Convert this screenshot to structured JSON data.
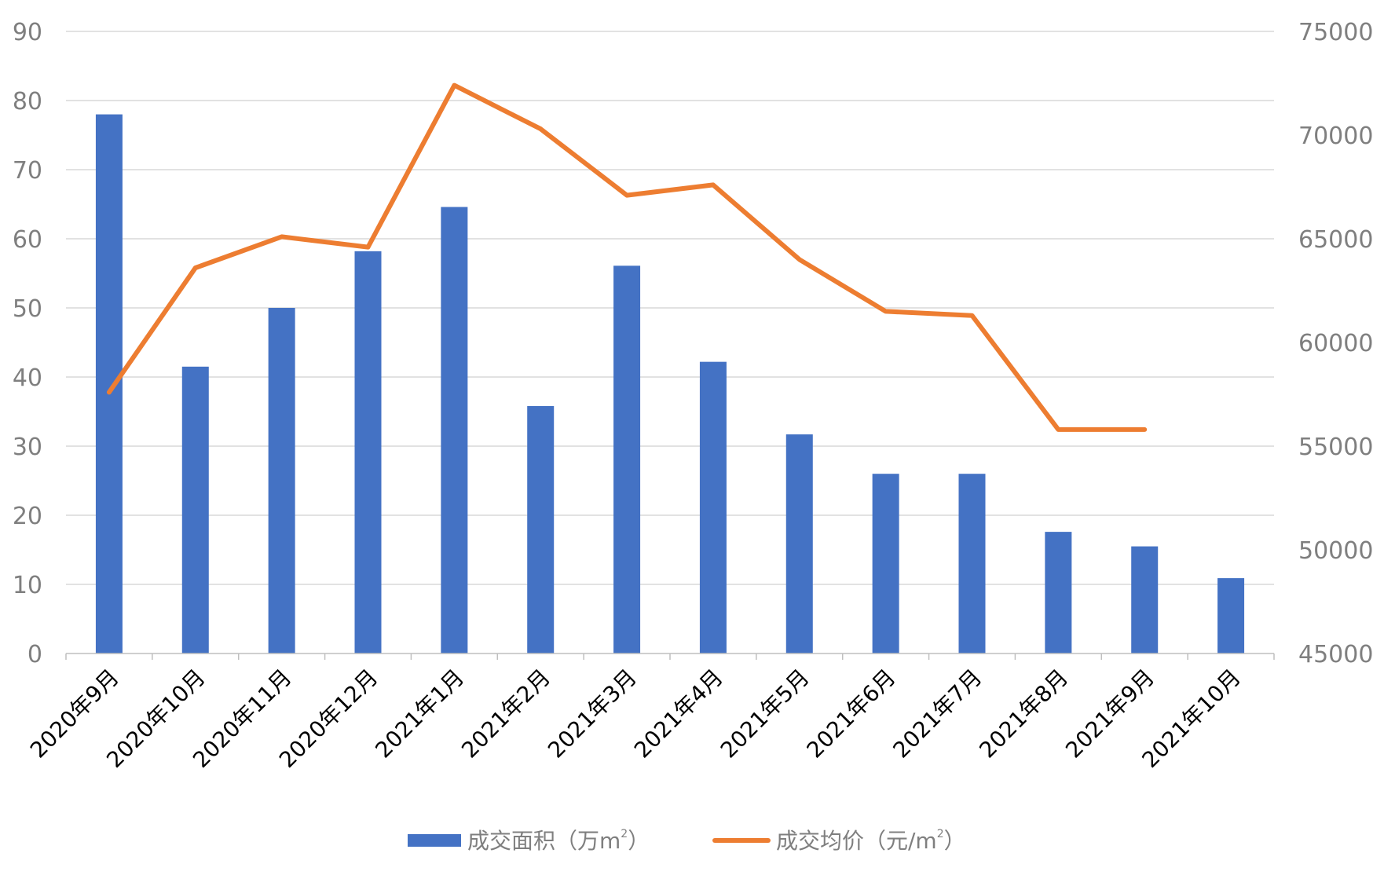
{
  "colors": {
    "bar": "#4472c4",
    "line": "#ed7d31",
    "grid": "#d9d9d9",
    "axis": "#bfbfbf",
    "tick_text": "#7f7f7f",
    "category_text": "#000000"
  },
  "chart_data": {
    "type": "bar",
    "categories": [
      "2020年9月",
      "2020年10月",
      "2020年11月",
      "2020年12月",
      "2021年1月",
      "2021年2月",
      "2021年3月",
      "2021年4月",
      "2021年5月",
      "2021年6月",
      "2021年7月",
      "2021年8月",
      "2021年9月",
      "2021年10月"
    ],
    "series": [
      {
        "name": "成交面积（万m²）",
        "type": "bar",
        "axis": "left",
        "values": [
          78,
          41.5,
          50,
          58.2,
          64.6,
          35.8,
          56.1,
          42.2,
          31.7,
          26,
          26,
          17.6,
          15.5,
          10.9
        ]
      },
      {
        "name": "成交均价（元/m²）",
        "type": "line",
        "axis": "right",
        "values": [
          57600,
          63600,
          65100,
          64600,
          72400,
          70300,
          67100,
          67600,
          64000,
          61500,
          61300,
          55800,
          55800,
          null
        ]
      }
    ],
    "y_left": {
      "ylim": [
        0,
        90
      ],
      "ticks": [
        "0",
        "10",
        "20",
        "30",
        "40",
        "50",
        "60",
        "70",
        "80",
        "90"
      ]
    },
    "y_right": {
      "ylim": [
        45000,
        75000
      ],
      "ticks": [
        "45000",
        "50000",
        "55000",
        "60000",
        "65000",
        "70000",
        "75000"
      ]
    },
    "grid": true,
    "legend_position": "bottom",
    "legend": {
      "bar_label": "成交面积（万m",
      "bar_suffix": "）",
      "line_label": "成交均价（元/m",
      "line_suffix": "）",
      "superscript": "2"
    }
  }
}
